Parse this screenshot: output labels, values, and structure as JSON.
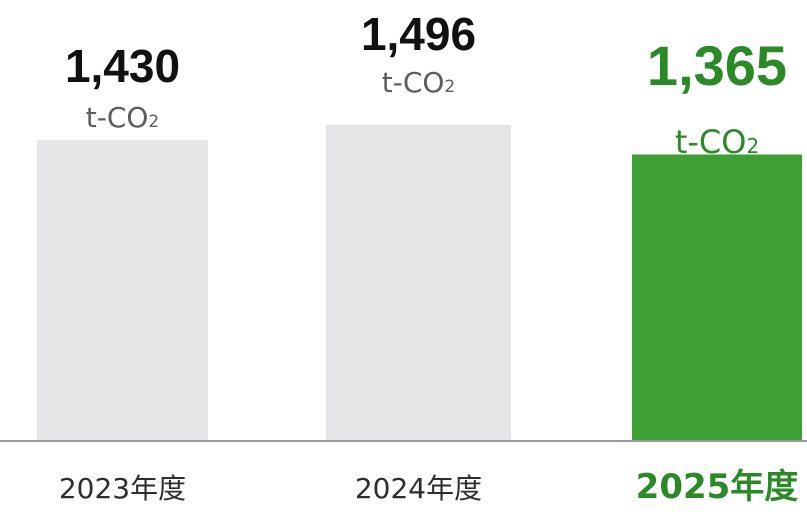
{
  "chart_data": {
    "type": "bar",
    "categories": [
      "2023年度",
      "2024年度",
      "2025年度"
    ],
    "values": [
      1430,
      1496,
      1365
    ],
    "value_labels": [
      "1,430",
      "1,496",
      "1,365"
    ],
    "unit": "t-CO",
    "unit_subscript": "2",
    "title": "",
    "xlabel": "",
    "ylabel": "",
    "grid": false,
    "legend": "none",
    "highlight_index": 2,
    "colors": {
      "bar": "#e6e5e8",
      "bar_highlight": "#3e9f34",
      "value_text": "#111111",
      "value_text_highlight": "#2a8a26",
      "unit_text": "#5c5c5c",
      "unit_text_highlight": "#2a8a26",
      "category_text": "#2e2e2e",
      "category_text_highlight": "#2a8a26",
      "baseline": "#9a9a9a"
    }
  }
}
